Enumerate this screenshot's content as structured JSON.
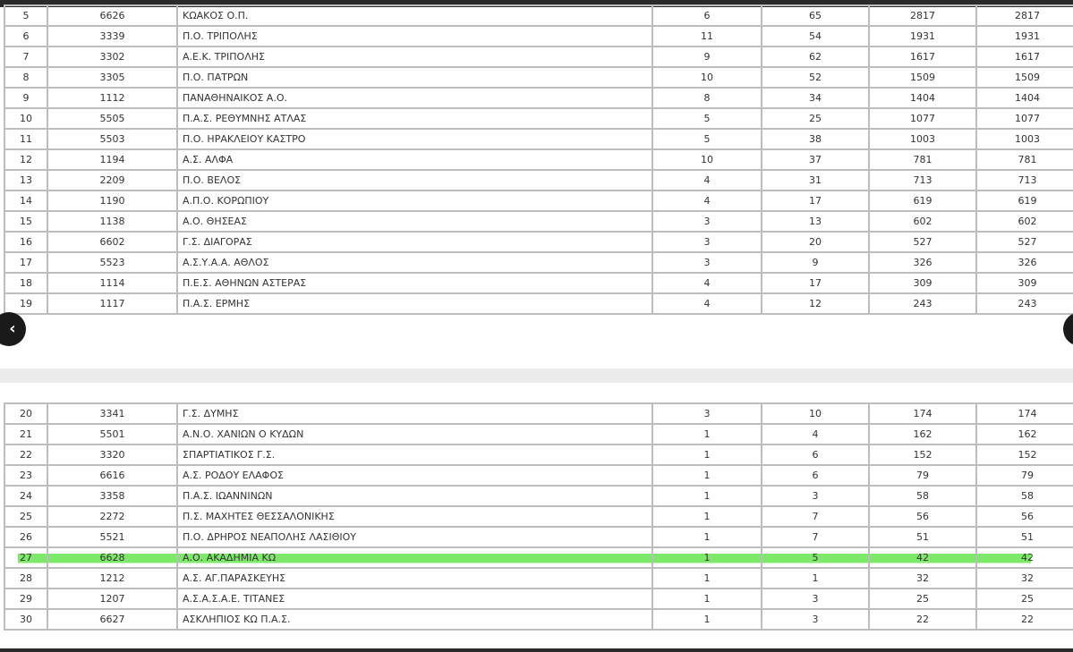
{
  "colors": {
    "highlight": "#7ee86a",
    "border": "#bdbdbd"
  },
  "nav": {
    "prev_icon": "chevron-left-icon",
    "next_icon": "chevron-right-icon",
    "prev_glyph": "‹"
  },
  "table1": [
    [
      "5",
      "6626",
      "ΚΩΑΚΟΣ Ο.Π.",
      "6",
      "65",
      "2817",
      "2817"
    ],
    [
      "6",
      "3339",
      "Π.Ο. ΤΡΙΠΟΛΗΣ",
      "11",
      "54",
      "1931",
      "1931"
    ],
    [
      "7",
      "3302",
      "Α.Ε.Κ. ΤΡΙΠΟΛΗΣ",
      "9",
      "62",
      "1617",
      "1617"
    ],
    [
      "8",
      "3305",
      "Π.Ο. ΠΑΤΡΩΝ",
      "10",
      "52",
      "1509",
      "1509"
    ],
    [
      "9",
      "1112",
      "ΠΑΝΑΘΗΝΑΙΚΟΣ Α.Ο.",
      "8",
      "34",
      "1404",
      "1404"
    ],
    [
      "10",
      "5505",
      "Π.Α.Σ. ΡΕΘΥΜΝΗΣ ΑΤΛΑΣ",
      "5",
      "25",
      "1077",
      "1077"
    ],
    [
      "11",
      "5503",
      "Π.Ο. ΗΡΑΚΛΕΙΟΥ ΚΑΣΤΡΟ",
      "5",
      "38",
      "1003",
      "1003"
    ],
    [
      "12",
      "1194",
      "Α.Σ. ΑΛΦΑ",
      "10",
      "37",
      "781",
      "781"
    ],
    [
      "13",
      "2209",
      "Π.Ο. ΒΕΛΟΣ",
      "4",
      "31",
      "713",
      "713"
    ],
    [
      "14",
      "1190",
      "Α.Π.Ο. ΚΟΡΩΠΙΟΥ",
      "4",
      "17",
      "619",
      "619"
    ],
    [
      "15",
      "1138",
      "Α.Ο. ΘΗΣΕΑΣ",
      "3",
      "13",
      "602",
      "602"
    ],
    [
      "16",
      "6602",
      "Γ.Σ. ΔΙΑΓΟΡΑΣ",
      "3",
      "20",
      "527",
      "527"
    ],
    [
      "17",
      "5523",
      "Α.Σ.Υ.Α.Α. ΑΘΛΟΣ",
      "3",
      "9",
      "326",
      "326"
    ],
    [
      "18",
      "1114",
      "Π.Ε.Σ. ΑΘΗΝΩΝ ΑΣΤΕΡΑΣ",
      "4",
      "17",
      "309",
      "309"
    ],
    [
      "19",
      "1117",
      "Π.Α.Σ. ΕΡΜΗΣ",
      "4",
      "12",
      "243",
      "243"
    ]
  ],
  "table2": [
    [
      "20",
      "3341",
      "Γ.Σ. ΔΥΜΗΣ",
      "3",
      "10",
      "174",
      "174"
    ],
    [
      "21",
      "5501",
      "Α.Ν.Ο. ΧΑΝΙΩΝ Ο ΚΥΔΩΝ",
      "1",
      "4",
      "162",
      "162"
    ],
    [
      "22",
      "3320",
      "ΣΠΑΡΤΙΑΤΙΚΟΣ Γ.Σ.",
      "1",
      "6",
      "152",
      "152"
    ],
    [
      "23",
      "6616",
      "Α.Σ. ΡΟΔΟΥ ΕΛΑΦΟΣ",
      "1",
      "6",
      "79",
      "79"
    ],
    [
      "24",
      "3358",
      "Π.Α.Σ. ΙΩΑΝΝΙΝΩΝ",
      "1",
      "3",
      "58",
      "58"
    ],
    [
      "25",
      "2272",
      "Π.Σ. ΜΑΧΗΤΕΣ ΘΕΣΣΑΛΟΝΙΚΗΣ",
      "1",
      "7",
      "56",
      "56"
    ],
    [
      "26",
      "5521",
      "Π.Ο. ΔΡΗΡΟΣ ΝΕΑΠΟΛΗΣ ΛΑΣΙΘΙΟΥ",
      "1",
      "7",
      "51",
      "51"
    ],
    [
      "27",
      "6628",
      "Α.Ο. ΑΚΑΔΗΜΙΑ ΚΩ",
      "1",
      "5",
      "42",
      "42"
    ],
    [
      "28",
      "1212",
      "Α.Σ. ΑΓ.ΠΑΡΑΣΚΕΥΗΣ",
      "1",
      "1",
      "32",
      "32"
    ],
    [
      "29",
      "1207",
      "Α.Σ.Α.Σ.Α.Ε. ΤΙΤΑΝΕΣ",
      "1",
      "3",
      "25",
      "25"
    ],
    [
      "30",
      "6627",
      "ΑΣΚΛΗΠΙΟΣ ΚΩ Π.Α.Σ.",
      "1",
      "3",
      "22",
      "22"
    ]
  ],
  "highlighted_rank": "27"
}
